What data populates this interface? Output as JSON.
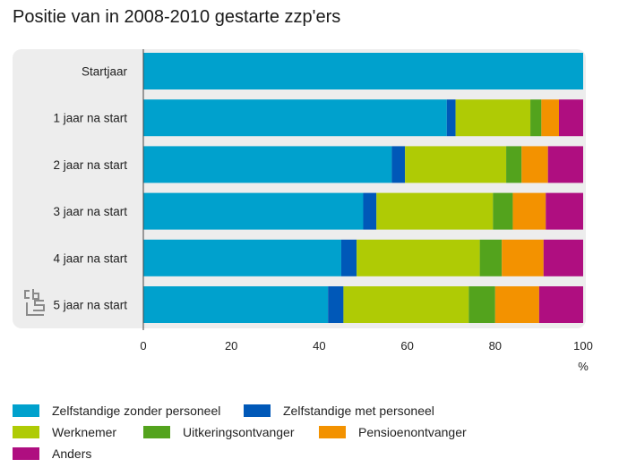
{
  "title": "Positie van in 2008-2010 gestarte zzp'ers",
  "colors": {
    "zzp": "#00A1CD",
    "zmp": "#0058B8",
    "werknemer": "#AFCB05",
    "uitkering": "#53A31D",
    "pensioen": "#F39200",
    "anders": "#AF0E80",
    "panel": "#EDEDED",
    "logo": "#8A8A8A"
  },
  "logo_icon": "cbs-logo-icon",
  "chart_data": {
    "type": "bar",
    "orientation": "horizontal",
    "stacked": true,
    "categories": [
      "Startjaar",
      "1 jaar na start",
      "2 jaar na start",
      "3 jaar na start",
      "4 jaar na start",
      "5 jaar na start"
    ],
    "xlabel": "%",
    "xlim": [
      0,
      100
    ],
    "xticks": [
      0,
      20,
      40,
      60,
      80,
      100
    ],
    "grid": false,
    "legend_position": "bottom",
    "series": [
      {
        "name": "Zelfstandige zonder personeel",
        "color_key": "zzp",
        "values": [
          100,
          69,
          56.5,
          50,
          45,
          42
        ]
      },
      {
        "name": "Zelfstandige met personeel",
        "color_key": "zmp",
        "values": [
          0,
          2,
          3,
          3,
          3.5,
          3.5
        ]
      },
      {
        "name": "Werknemer",
        "color_key": "werknemer",
        "values": [
          0,
          17,
          23,
          26.5,
          28,
          28.5
        ]
      },
      {
        "name": "Uitkeringsontvanger",
        "color_key": "uitkering",
        "values": [
          0,
          2.5,
          3.5,
          4.5,
          5,
          6
        ]
      },
      {
        "name": "Pensioenontvanger",
        "color_key": "pensioen",
        "values": [
          0,
          4,
          6,
          7.5,
          9.5,
          10
        ]
      },
      {
        "name": "Anders",
        "color_key": "anders",
        "values": [
          0,
          5.5,
          8,
          8.5,
          9,
          10
        ]
      }
    ]
  }
}
